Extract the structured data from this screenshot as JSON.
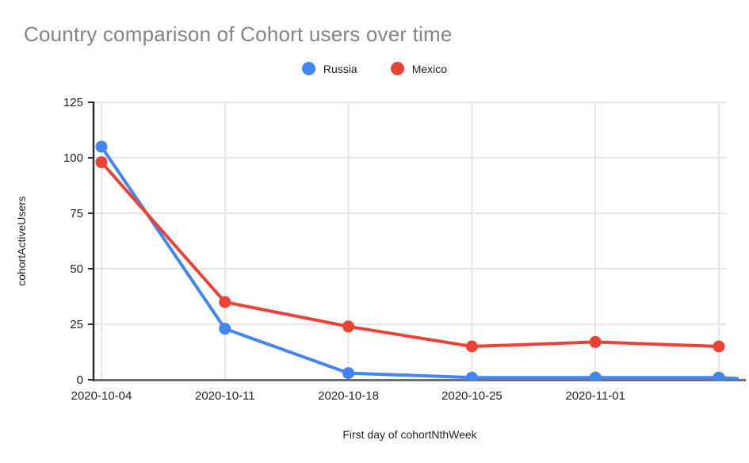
{
  "chart_data": {
    "type": "line",
    "title": "Country comparison of Cohort users over time",
    "xlabel": "First day of cohortNthWeek",
    "ylabel": "cohortActiveUsers",
    "categories": [
      "2020-10-04",
      "2020-10-11",
      "2020-10-18",
      "2020-10-25",
      "2020-11-01",
      ""
    ],
    "series": [
      {
        "name": "Russia",
        "color": "#4285F4",
        "values": [
          105,
          23,
          3,
          1,
          1,
          1
        ],
        "extends_to_chart_edge": true
      },
      {
        "name": "Mexico",
        "color": "#EA4335",
        "values": [
          98,
          35,
          24,
          15,
          17,
          15
        ],
        "extends_to_chart_edge": false
      }
    ],
    "yticks": [
      0,
      25,
      50,
      75,
      100,
      125
    ],
    "ylim": [
      0,
      125
    ],
    "grid": true,
    "legend_position": "top",
    "colors": {
      "title_text": "#848484",
      "axis_text": "#1f1f1f",
      "gridline": "#e6e6e6",
      "y_axis_line": "#2e2e2e",
      "baseline": "#6e6e6e",
      "background": "#ffffff"
    }
  }
}
